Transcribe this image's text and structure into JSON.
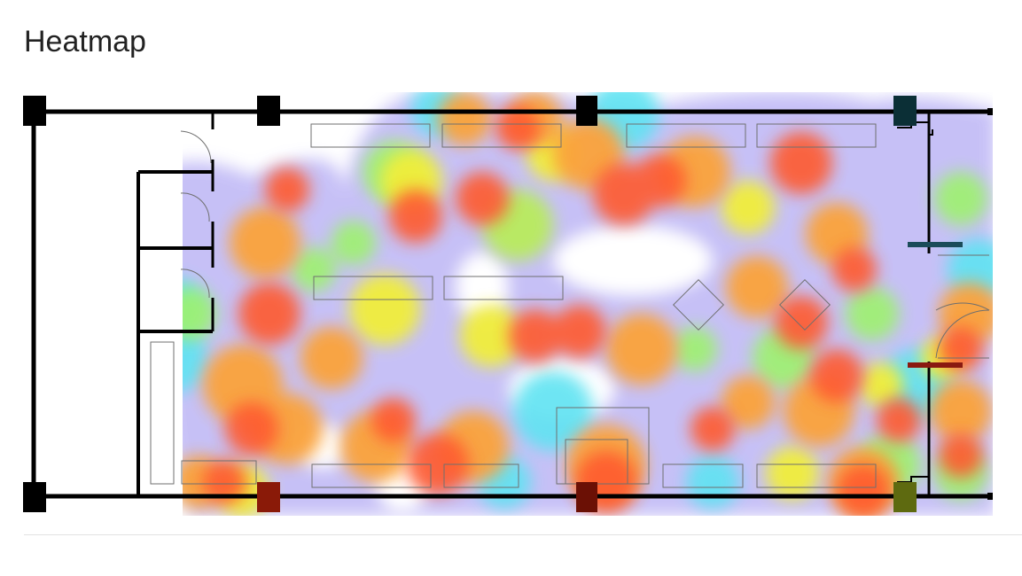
{
  "page": {
    "title": "Heatmap"
  },
  "colors": {
    "gradient": [
      "#b6b0f4",
      "#3fe7f4",
      "#8ff27a",
      "#f4f238",
      "#fba43a",
      "#ff5a2e",
      "#e02b1d"
    ],
    "wall": "#000000",
    "fixture_stroke": "#6f6f6f"
  },
  "heatmap": {
    "type": "heatmap",
    "description_visible": false
  }
}
